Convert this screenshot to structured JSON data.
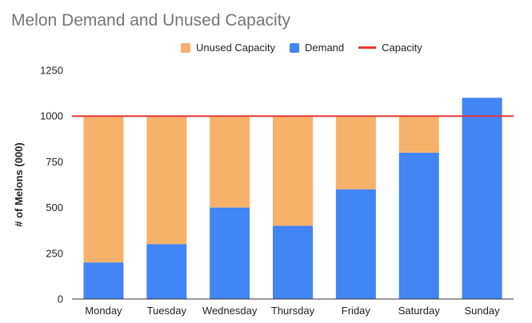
{
  "chart_data": {
    "type": "bar",
    "stacked": true,
    "title": "Melon Demand and Unused Capacity",
    "xlabel": "",
    "ylabel": "# of Melons (000)",
    "categories": [
      "Monday",
      "Tuesday",
      "Wednesday",
      "Thursday",
      "Friday",
      "Saturday",
      "Sunday"
    ],
    "series": [
      {
        "name": "Demand",
        "values": [
          200,
          300,
          500,
          400,
          600,
          800,
          1100
        ],
        "color": "#4285f4"
      },
      {
        "name": "Unused Capacity",
        "values": [
          800,
          700,
          500,
          600,
          400,
          200,
          0
        ],
        "color": "#f6b26b"
      }
    ],
    "capacity_line": {
      "name": "Capacity",
      "value": 1000,
      "color": "#e53935"
    },
    "ylim": [
      0,
      1250
    ],
    "yticks": [
      0,
      250,
      500,
      750,
      1000,
      1250
    ],
    "grid": false,
    "legend_order": [
      "Unused Capacity",
      "Demand",
      "Capacity"
    ],
    "legend_position": "top"
  }
}
